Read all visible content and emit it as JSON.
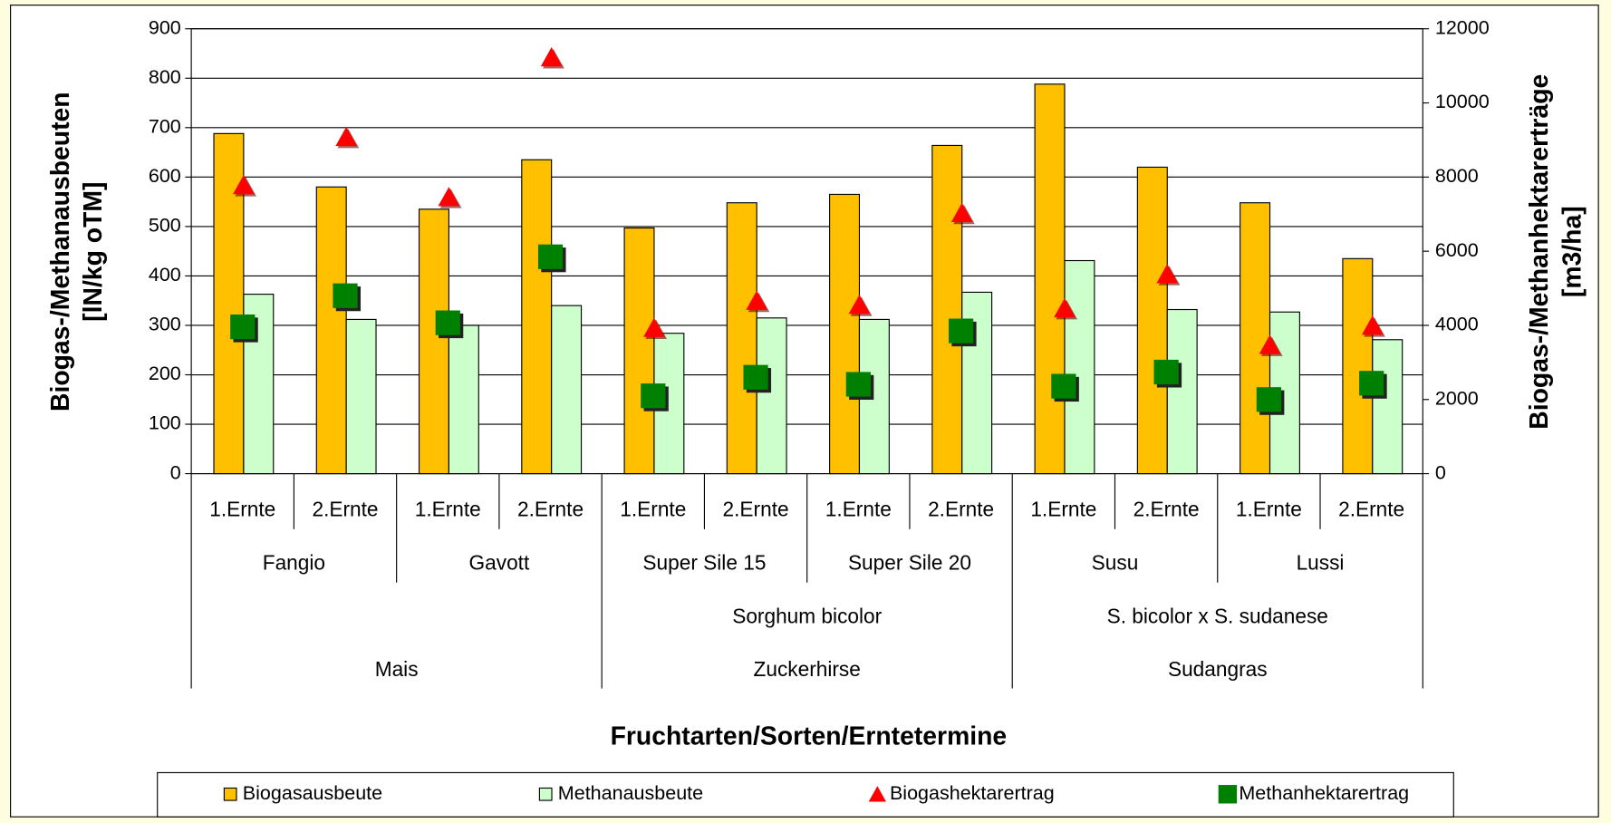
{
  "chart_data": {
    "type": "bar+scatter",
    "x_label": "Fruchtarten/Sorten/Erntetermine",
    "y_label": [
      "Biogas-/Methanausbeuten",
      "[lN/kg oTM]"
    ],
    "y2_label": [
      "Biogas-/Methanhektarerträge",
      "[m3/ha]"
    ],
    "categories": [
      "1.Ernte",
      "2.Ernte",
      "1.Ernte",
      "2.Ernte",
      "1.Ernte",
      "2.Ernte",
      "1.Ernte",
      "2.Ernte",
      "1.Ernte",
      "2.Ernte",
      "1.Ernte",
      "2.Ernte"
    ],
    "crops": [
      {
        "name": "Mais",
        "varieties": [
          "Fangio",
          "Gavott"
        ]
      },
      {
        "name": "Zuckerhirse",
        "species": "Sorghum bicolor",
        "varieties": [
          "Super Sile 15",
          "Super Sile 20"
        ]
      },
      {
        "name": "Sudangras",
        "species": "S. bicolor x S. sudanese",
        "varieties": [
          "Susu",
          "Lussi"
        ]
      }
    ],
    "series": [
      {
        "name": "Biogasausbeute",
        "kind": "bar",
        "color": "#ffc000",
        "values": [
          688,
          580,
          535,
          635,
          497,
          548,
          565,
          664,
          788,
          620,
          548,
          435
        ]
      },
      {
        "name": "Methanausbeute",
        "kind": "bar",
        "color": "#ccffcc",
        "values": [
          363,
          312,
          300,
          340,
          284,
          315,
          312,
          367,
          431,
          332,
          327,
          271
        ]
      },
      {
        "name": "Biogashektarertrag",
        "kind": "triangle",
        "axis": "y2",
        "color": "#ff0000",
        "values": [
          7750,
          9050,
          7430,
          11200,
          3900,
          4630,
          4520,
          7000,
          4430,
          5350,
          3440,
          3960
        ]
      },
      {
        "name": "Methanhektarertrag",
        "kind": "square",
        "axis": "y2",
        "color": "#008000",
        "values": [
          3960,
          4800,
          4070,
          5850,
          2100,
          2600,
          2410,
          3850,
          2360,
          2740,
          2000,
          2440
        ]
      }
    ],
    "ylim": [
      0,
      900
    ],
    "yticks": [
      0,
      100,
      200,
      300,
      400,
      500,
      600,
      700,
      800,
      900
    ],
    "y2lim": [
      0,
      12000
    ],
    "y2ticks": [
      0,
      2000,
      4000,
      6000,
      8000,
      10000,
      12000
    ],
    "grid": true
  }
}
